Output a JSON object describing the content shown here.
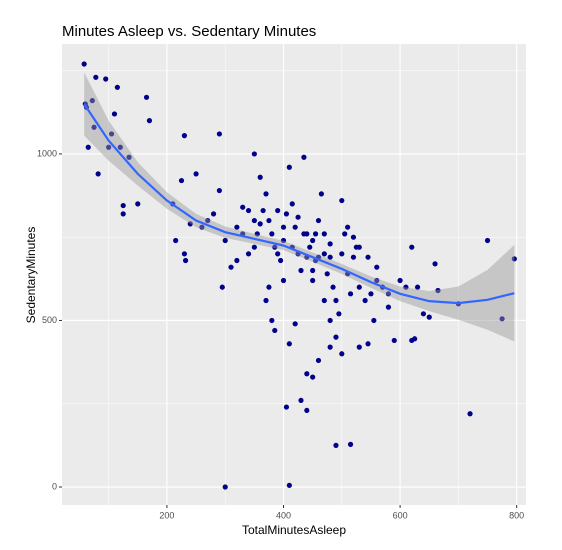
{
  "chart_data": {
    "type": "scatter",
    "title": "Minutes Asleep vs. Sedentary Minutes",
    "x_label": "TotalMinutesAsleep",
    "y_label": "SedentaryMinutes",
    "color": "#00008b",
    "x": [
      58,
      60,
      62,
      65,
      72,
      75,
      78,
      82,
      95,
      100,
      105,
      110,
      115,
      120,
      125,
      125,
      135,
      150,
      165,
      170,
      230,
      290,
      225,
      250,
      290,
      210,
      215,
      230,
      232,
      240,
      260,
      270,
      280,
      295,
      300,
      310,
      320,
      330,
      340,
      350,
      360,
      370,
      375,
      380,
      385,
      390,
      395,
      400,
      405,
      410,
      415,
      420,
      425,
      430,
      435,
      440,
      445,
      450,
      455,
      460,
      465,
      470,
      475,
      480,
      485,
      490,
      495,
      500,
      505,
      510,
      515,
      520,
      525,
      530,
      540,
      550,
      555,
      560,
      570,
      580,
      600,
      610,
      620,
      630,
      640,
      650,
      660,
      665,
      700,
      750,
      775,
      796,
      720,
      530,
      545,
      590,
      620,
      625,
      480,
      490,
      500,
      460,
      440,
      450,
      430,
      440,
      405,
      380,
      385,
      420,
      410,
      300,
      410,
      490,
      515,
      370,
      375,
      400,
      450,
      470,
      480,
      350,
      355,
      360,
      365,
      425,
      435,
      455,
      460,
      470,
      500,
      510,
      350,
      330,
      340,
      320,
      390,
      400,
      415,
      440,
      450,
      480,
      520,
      530,
      545,
      560,
      580
    ],
    "y": [
      1270,
      1150,
      1140,
      1020,
      1160,
      1080,
      1230,
      940,
      1225,
      1020,
      1060,
      1120,
      1200,
      1020,
      820,
      845,
      990,
      850,
      1170,
      1100,
      1055,
      1060,
      920,
      940,
      890,
      850,
      740,
      700,
      680,
      790,
      780,
      800,
      820,
      600,
      740,
      660,
      680,
      840,
      830,
      1000,
      930,
      880,
      800,
      760,
      720,
      700,
      680,
      740,
      820,
      960,
      850,
      780,
      700,
      650,
      990,
      760,
      720,
      740,
      680,
      800,
      880,
      700,
      640,
      730,
      600,
      560,
      520,
      700,
      760,
      640,
      580,
      690,
      720,
      600,
      560,
      580,
      500,
      660,
      600,
      540,
      620,
      600,
      720,
      600,
      520,
      510,
      670,
      590,
      550,
      740,
      505,
      685,
      220,
      420,
      430,
      440,
      440,
      445,
      420,
      450,
      400,
      380,
      340,
      330,
      260,
      230,
      240,
      500,
      470,
      490,
      430,
      0,
      5,
      125,
      128,
      560,
      600,
      620,
      620,
      560,
      500,
      720,
      760,
      790,
      830,
      810,
      760,
      760,
      690,
      760,
      860,
      780,
      800,
      760,
      700,
      780,
      830,
      780,
      720,
      690,
      650,
      690,
      750,
      720,
      690,
      620,
      580
    ],
    "smooth": {
      "color": "#3366ff",
      "x": [
        58,
        100,
        150,
        200,
        250,
        300,
        350,
        400,
        450,
        500,
        550,
        600,
        650,
        700,
        750,
        796
      ],
      "y": [
        1150,
        1040,
        940,
        860,
        800,
        765,
        745,
        725,
        690,
        655,
        615,
        580,
        558,
        552,
        562,
        582
      ],
      "lower": [
        1055,
        980,
        905,
        835,
        780,
        748,
        730,
        711,
        676,
        640,
        598,
        558,
        528,
        502,
        472,
        437
      ],
      "upper": [
        1245,
        1100,
        975,
        885,
        820,
        782,
        760,
        739,
        704,
        670,
        632,
        602,
        588,
        602,
        652,
        727
      ]
    },
    "xlim": [
      20,
      816
    ],
    "ylim": [
      -54,
      1330
    ],
    "xticks": [
      200,
      400,
      600,
      800
    ],
    "yticks": [
      0,
      500,
      1000
    ],
    "grid": true
  }
}
